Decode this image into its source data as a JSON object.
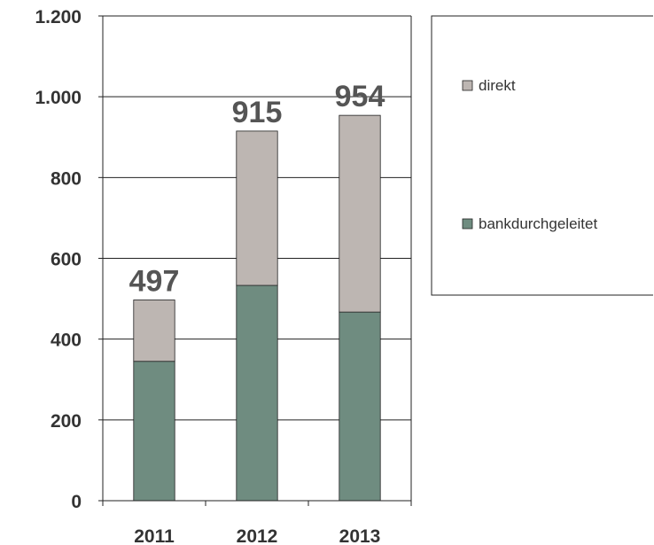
{
  "chart_data": {
    "type": "bar",
    "stacked": true,
    "categories": [
      "2011",
      "2012",
      "2013"
    ],
    "series": [
      {
        "name": "bankdurchgeleitet",
        "values": [
          345,
          533,
          467
        ],
        "color": "#6f8c80"
      },
      {
        "name": "direkt",
        "values": [
          152,
          382,
          487
        ],
        "color": "#bdb6b2"
      }
    ],
    "totals": [
      497,
      915,
      954
    ],
    "total_labels": [
      "497",
      "915",
      "954"
    ],
    "ylim": [
      0,
      1200
    ],
    "yticks": [
      0,
      200,
      400,
      600,
      800,
      1000,
      1200
    ],
    "ytick_labels": [
      "0",
      "200",
      "400",
      "600",
      "800",
      "1.000",
      "1.200"
    ],
    "grid": true,
    "legend_position": "right",
    "legend_items": [
      "direkt",
      "bankdurchgeleitet"
    ],
    "title": "",
    "xlabel": "",
    "ylabel": ""
  }
}
